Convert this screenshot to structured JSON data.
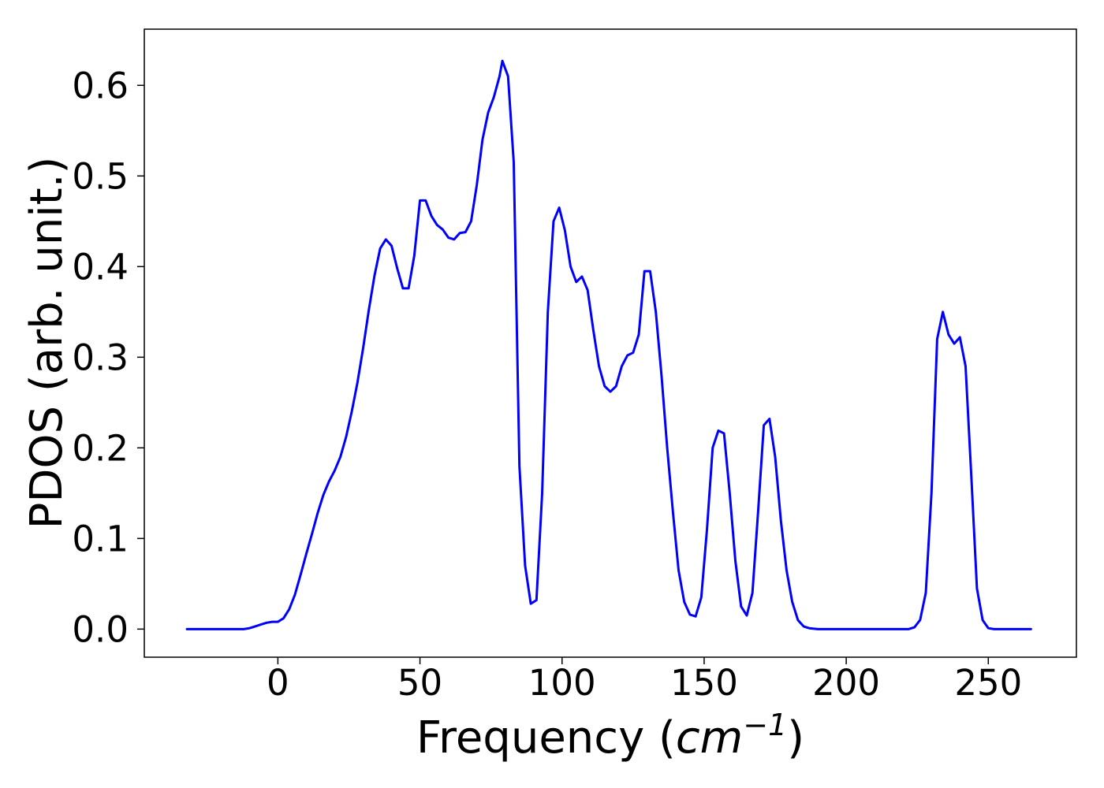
{
  "chart_data": {
    "type": "line",
    "title": "",
    "xlabel": "Frequency",
    "xlabel_unit_base": "cm",
    "xlabel_unit_exp": "−1",
    "ylabel": "PDOS (arb. unit.)",
    "xlim": [
      -47,
      281
    ],
    "ylim": [
      -0.031,
      0.662
    ],
    "xticks": [
      0,
      50,
      100,
      150,
      200,
      250
    ],
    "xtick_labels": [
      "0",
      "50",
      "100",
      "150",
      "200",
      "250"
    ],
    "yticks": [
      0.0,
      0.1,
      0.2,
      0.3,
      0.4,
      0.5,
      0.6
    ],
    "ytick_labels": [
      "0.0",
      "0.1",
      "0.2",
      "0.3",
      "0.4",
      "0.5",
      "0.6"
    ],
    "grid": false,
    "series": [
      {
        "color": "#0000ff",
        "x": [
          -32,
          -12,
          -10,
          -8,
          -6,
          -4,
          -2,
          0,
          2,
          4,
          6,
          8,
          10,
          12,
          14,
          16,
          18,
          20,
          22,
          24,
          26,
          28,
          30,
          32,
          34,
          36,
          38,
          40,
          42,
          44,
          46,
          48,
          50,
          52,
          54,
          56,
          58,
          60,
          62,
          64,
          66,
          68,
          70,
          72,
          74,
          76,
          78,
          79,
          81,
          83,
          85,
          87,
          89,
          91,
          93,
          95,
          97,
          99,
          101,
          103,
          105,
          107,
          109,
          111,
          113,
          115,
          117,
          119,
          121,
          123,
          125,
          127,
          129,
          131,
          133,
          135,
          137,
          139,
          141,
          143,
          145,
          147,
          149,
          151,
          153,
          155,
          157,
          159,
          161,
          163,
          165,
          167,
          169,
          171,
          173,
          175,
          177,
          179,
          181,
          183,
          185,
          187,
          190,
          200,
          210,
          220,
          222,
          224,
          226,
          228,
          230,
          232,
          234,
          236,
          238,
          240,
          242,
          244,
          246,
          248,
          250,
          252,
          265
        ],
        "y": [
          0.0,
          0.0,
          0.001,
          0.003,
          0.005,
          0.007,
          0.008,
          0.008,
          0.012,
          0.022,
          0.038,
          0.06,
          0.083,
          0.105,
          0.128,
          0.148,
          0.163,
          0.175,
          0.19,
          0.212,
          0.24,
          0.272,
          0.31,
          0.352,
          0.39,
          0.42,
          0.43,
          0.423,
          0.398,
          0.376,
          0.376,
          0.412,
          0.473,
          0.473,
          0.456,
          0.446,
          0.441,
          0.432,
          0.43,
          0.437,
          0.438,
          0.45,
          0.49,
          0.54,
          0.57,
          0.587,
          0.61,
          0.627,
          0.61,
          0.515,
          0.18,
          0.07,
          0.028,
          0.032,
          0.15,
          0.35,
          0.45,
          0.465,
          0.44,
          0.4,
          0.383,
          0.389,
          0.374,
          0.33,
          0.29,
          0.268,
          0.262,
          0.268,
          0.29,
          0.302,
          0.305,
          0.325,
          0.395,
          0.395,
          0.35,
          0.28,
          0.2,
          0.13,
          0.065,
          0.03,
          0.016,
          0.014,
          0.035,
          0.11,
          0.2,
          0.219,
          0.216,
          0.15,
          0.075,
          0.025,
          0.015,
          0.04,
          0.13,
          0.225,
          0.232,
          0.19,
          0.12,
          0.065,
          0.03,
          0.01,
          0.003,
          0.001,
          0.0,
          0.0,
          0.0,
          0.0,
          0.0,
          0.002,
          0.01,
          0.04,
          0.15,
          0.32,
          0.35,
          0.325,
          0.315,
          0.322,
          0.29,
          0.17,
          0.045,
          0.01,
          0.001,
          0.0,
          0.0
        ]
      }
    ]
  }
}
